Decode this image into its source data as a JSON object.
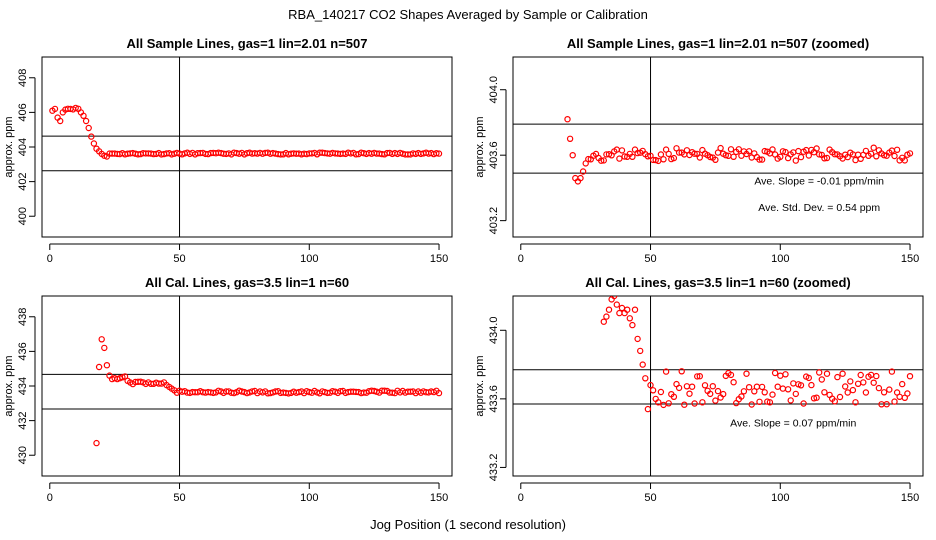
{
  "figure": {
    "title": "RBA_140217  CO2 Shapes Averaged by Sample or Calibration",
    "xlabel": "Jog Position (1 second resolution)"
  },
  "chart_data": [
    {
      "type": "scatter",
      "title": "All Sample Lines, gas=1 lin=2.01 n=507",
      "ylabel": "approx. ppm",
      "xlim": [
        -3,
        155
      ],
      "ylim": [
        398.8,
        409.2
      ],
      "xticks": [
        0,
        50,
        100,
        150
      ],
      "xtick_labels": [
        "0",
        "50",
        "100",
        "150"
      ],
      "yticks": [
        400,
        402,
        404,
        406,
        408
      ],
      "ytick_labels": [
        "400",
        "402",
        "404",
        "406",
        "408"
      ],
      "vlines": [
        50
      ],
      "hlines": [
        402.63,
        404.63
      ],
      "annotations": [],
      "color": "#ff0000",
      "series": [
        {
          "key": "sample_full",
          "x": [],
          "y": []
        }
      ]
    },
    {
      "type": "scatter",
      "title": "All Sample Lines, gas=1 lin=2.01 n=507 (zoomed)",
      "ylabel": "approx. ppm",
      "xlim": [
        -3,
        155
      ],
      "ylim": [
        403.1,
        404.2
      ],
      "xticks": [
        0,
        50,
        100,
        150
      ],
      "xtick_labels": [
        "0",
        "50",
        "100",
        "150"
      ],
      "yticks": [
        403.2,
        403.6,
        404.0
      ],
      "ytick_labels": [
        "403.2",
        "403.6",
        "404.0"
      ],
      "vlines": [
        50
      ],
      "hlines": [
        403.49,
        403.79
      ],
      "annotations": [
        {
          "label": "Ave. Slope = ",
          "value": "-0.01",
          "unit": " ppm/min",
          "x": 115,
          "y": 403.42
        },
        {
          "label": "Ave. Std. Dev. = ",
          "value": "0.54",
          "unit": " ppm",
          "x": 115,
          "y": 403.26
        }
      ],
      "color": "#ff0000",
      "series": [
        {
          "key": "sample_zoom",
          "x": [],
          "y": []
        }
      ]
    },
    {
      "type": "scatter",
      "title": "All Cal. Lines, gas=3.5 lin=1 n=60",
      "ylabel": "approx. ppm",
      "xlim": [
        -3,
        155
      ],
      "ylim": [
        428.8,
        439.2
      ],
      "xticks": [
        0,
        50,
        100,
        150
      ],
      "xtick_labels": [
        "0",
        "50",
        "100",
        "150"
      ],
      "yticks": [
        430,
        432,
        434,
        436,
        438
      ],
      "ytick_labels": [
        "430",
        "432",
        "434",
        "436",
        "438"
      ],
      "vlines": [
        50
      ],
      "hlines": [
        432.67,
        434.67
      ],
      "annotations": [],
      "color": "#ff0000",
      "series": [
        {
          "key": "cal_full",
          "x": [],
          "y": []
        }
      ]
    },
    {
      "type": "scatter",
      "title": "All Cal. Lines, gas=3.5 lin=1 n=60 (zoomed)",
      "ylabel": "approx. ppm",
      "xlim": [
        -3,
        155
      ],
      "ylim": [
        433.15,
        434.2
      ],
      "xticks": [
        0,
        50,
        100,
        150
      ],
      "xtick_labels": [
        "0",
        "50",
        "100",
        "150"
      ],
      "yticks": [
        433.2,
        433.6,
        434.0
      ],
      "ytick_labels": [
        "433.2",
        "433.6",
        "434.0"
      ],
      "vlines": [
        50
      ],
      "hlines": [
        433.57,
        433.77
      ],
      "annotations": [
        {
          "label": "Ave. Slope = ",
          "value": "0.07",
          "unit": " ppm/min",
          "x": 105,
          "y": 433.44
        }
      ],
      "color": "#ff0000",
      "series": [
        {
          "key": "cal_zoom",
          "x": [],
          "y": []
        }
      ]
    }
  ]
}
